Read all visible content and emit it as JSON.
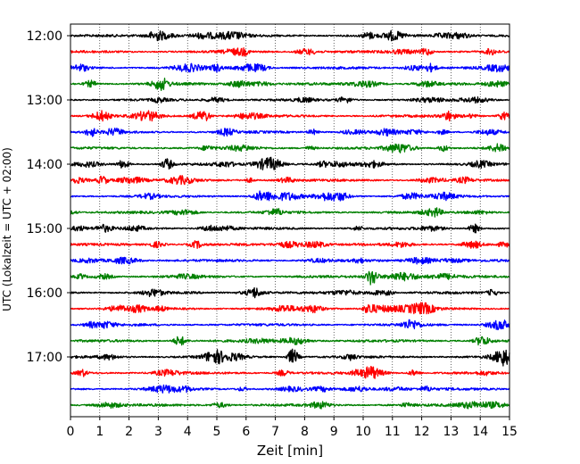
{
  "chart_data": {
    "type": "line",
    "subtype": "helicorder",
    "xlabel": "Zeit  [min]",
    "ylabel": "UTC (Lokalzeit = UTC + 02:00)",
    "xlim": [
      0,
      15
    ],
    "x_ticks": [
      0,
      1,
      2,
      3,
      4,
      5,
      6,
      7,
      8,
      9,
      10,
      11,
      12,
      13,
      14,
      15
    ],
    "y_tick_labels": [
      "12:00",
      "13:00",
      "14:00",
      "15:00",
      "16:00",
      "17:00"
    ],
    "vertical_grid": "dotted",
    "colors": [
      "#000000",
      "#ff0000",
      "#0000ff",
      "#008000"
    ],
    "traces": [
      {
        "start": "12:00",
        "color": "#000000"
      },
      {
        "start": "12:15",
        "color": "#ff0000"
      },
      {
        "start": "12:30",
        "color": "#0000ff"
      },
      {
        "start": "12:45",
        "color": "#008000"
      },
      {
        "start": "13:00",
        "color": "#000000"
      },
      {
        "start": "13:15",
        "color": "#ff0000"
      },
      {
        "start": "13:30",
        "color": "#0000ff"
      },
      {
        "start": "13:45",
        "color": "#008000"
      },
      {
        "start": "14:00",
        "color": "#000000"
      },
      {
        "start": "14:15",
        "color": "#ff0000"
      },
      {
        "start": "14:30",
        "color": "#0000ff"
      },
      {
        "start": "14:45",
        "color": "#008000"
      },
      {
        "start": "15:00",
        "color": "#000000"
      },
      {
        "start": "15:15",
        "color": "#ff0000"
      },
      {
        "start": "15:30",
        "color": "#0000ff"
      },
      {
        "start": "15:45",
        "color": "#008000"
      },
      {
        "start": "16:00",
        "color": "#000000"
      },
      {
        "start": "16:15",
        "color": "#ff0000"
      },
      {
        "start": "16:30",
        "color": "#0000ff"
      },
      {
        "start": "16:45",
        "color": "#008000"
      },
      {
        "start": "17:00",
        "color": "#000000"
      },
      {
        "start": "17:15",
        "color": "#ff0000"
      },
      {
        "start": "17:30",
        "color": "#0000ff"
      },
      {
        "start": "17:45",
        "color": "#008000"
      }
    ],
    "events": [
      {
        "start": "12:45",
        "minute": 3.1,
        "amplitude": 0.6
      },
      {
        "start": "13:15",
        "minute": 4.6,
        "amplitude": 0.8
      },
      {
        "start": "13:15",
        "minute": 14.8,
        "amplitude": 0.6
      },
      {
        "start": "13:30",
        "minute": 0.7,
        "amplitude": 0.7
      },
      {
        "start": "14:00",
        "minute": 1.8,
        "amplitude": 0.7
      },
      {
        "start": "14:00",
        "minute": 3.3,
        "amplitude": 0.9
      },
      {
        "start": "14:15",
        "minute": 1.1,
        "amplitude": 0.7
      },
      {
        "start": "14:45",
        "minute": 12.5,
        "amplitude": 0.6
      },
      {
        "start": "15:00",
        "minute": 13.8,
        "amplitude": 0.7
      },
      {
        "start": "15:45",
        "minute": 10.3,
        "amplitude": 1.4
      },
      {
        "start": "16:00",
        "minute": 6.3,
        "amplitude": 0.6
      },
      {
        "start": "16:15",
        "minute": 10.2,
        "amplitude": 0.7
      },
      {
        "start": "17:00",
        "minute": 7.6,
        "amplitude": 1.3
      },
      {
        "start": "17:00",
        "minute": 14.8,
        "amplitude": 0.8
      }
    ]
  }
}
